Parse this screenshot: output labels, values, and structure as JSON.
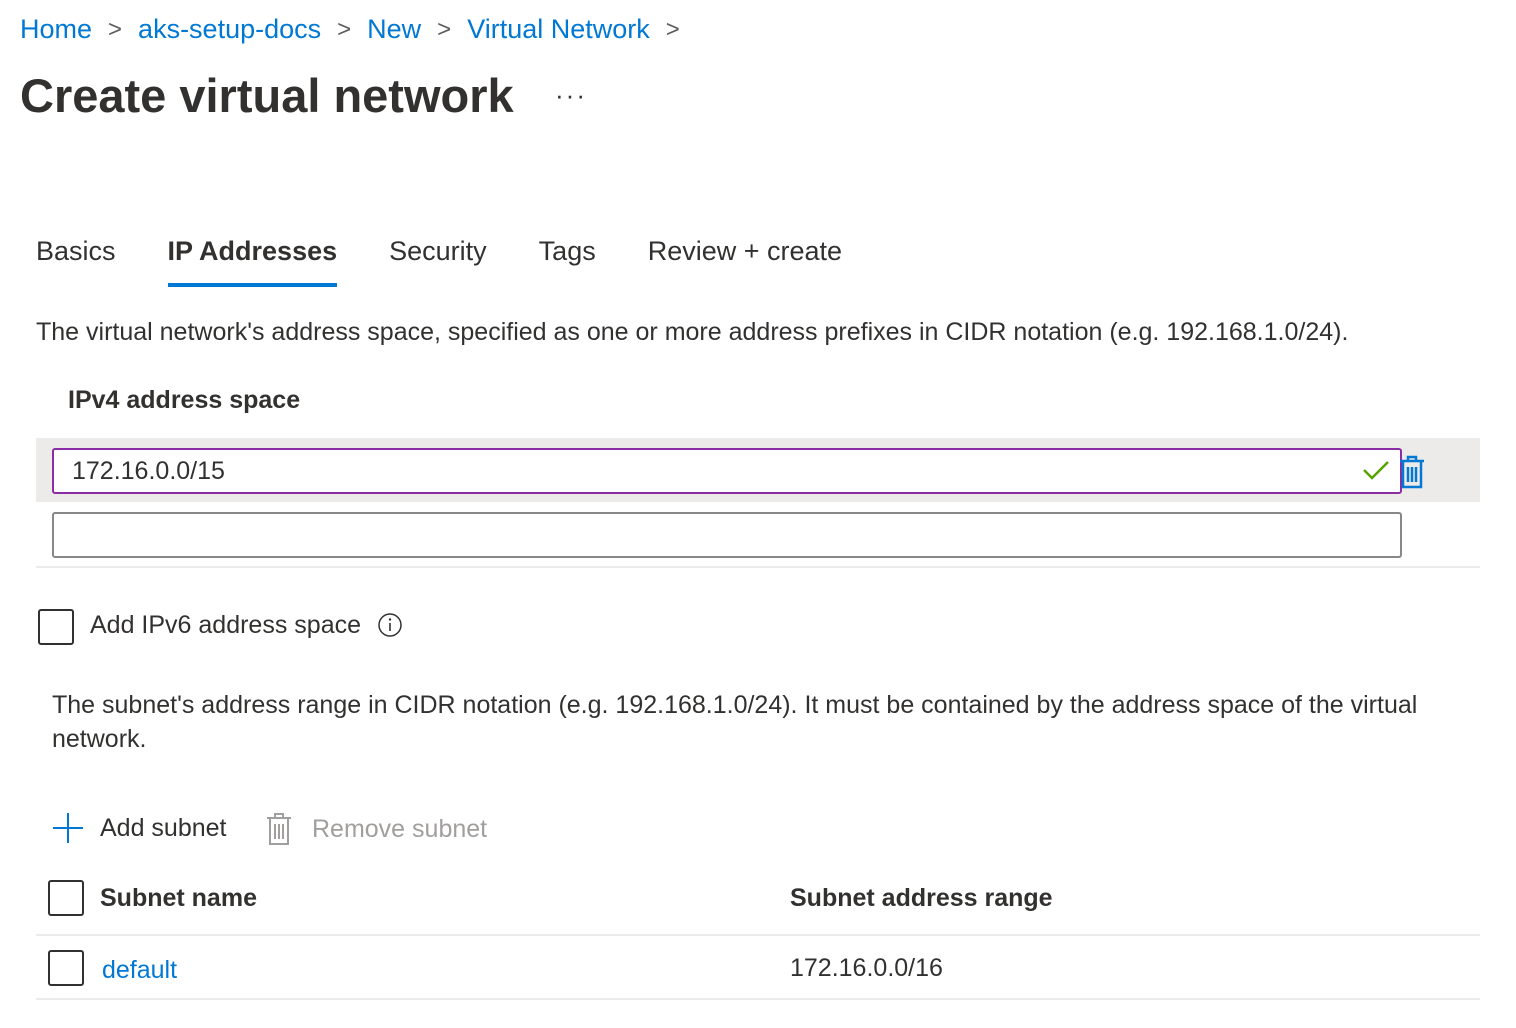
{
  "breadcrumb": [
    "Home",
    "aks-setup-docs",
    "New",
    "Virtual Network"
  ],
  "page_title": "Create virtual network",
  "more_label": "···",
  "tabs": [
    {
      "label": "Basics",
      "active": false
    },
    {
      "label": "IP Addresses",
      "active": true
    },
    {
      "label": "Security",
      "active": false
    },
    {
      "label": "Tags",
      "active": false
    },
    {
      "label": "Review + create",
      "active": false
    }
  ],
  "address_space": {
    "description": "The virtual network's address space, specified as one or more address prefixes in CIDR notation (e.g. 192.168.1.0/24).",
    "ipv4_label": "IPv4 address space",
    "entries": [
      "172.16.0.0/15"
    ],
    "new_entry_value": "",
    "ipv6_checkbox_label": "Add IPv6 address space",
    "ipv6_checked": false
  },
  "subnets": {
    "description": "The subnet's address range in CIDR notation (e.g. 192.168.1.0/24). It must be contained by the address space of the virtual network.",
    "add_label": "Add subnet",
    "remove_label": "Remove subnet",
    "columns": [
      "Subnet name",
      "Subnet address range"
    ],
    "rows": [
      {
        "name": "default",
        "range": "172.16.0.0/16"
      }
    ]
  },
  "colors": {
    "accent": "#0078d4",
    "valid": "#57a300",
    "focus_border": "#8a2da5",
    "disabled": "#a19f9d"
  }
}
